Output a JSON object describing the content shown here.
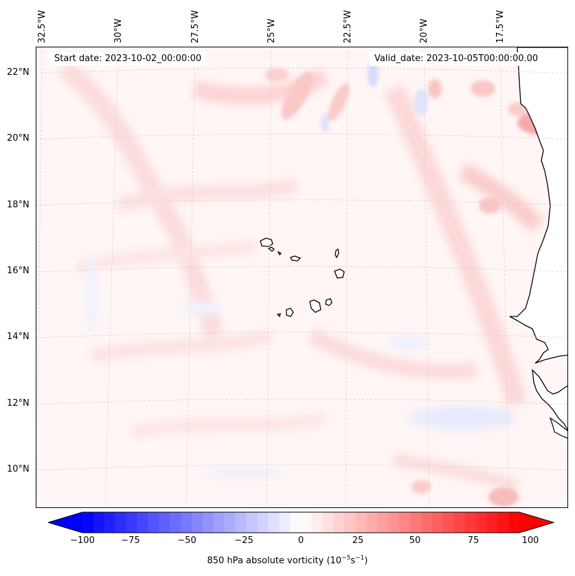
{
  "header": {
    "start_date": "Start date: 2023-10-02_00:00:00",
    "valid_date": "Valid_date: 2023-10-05T00:00:00.00"
  },
  "axes": {
    "longitude_labels": [
      "32.5°W",
      "30°W",
      "27.5°W",
      "25°W",
      "22.5°W",
      "20°W",
      "17.5°W"
    ],
    "latitude_labels": [
      "22°N",
      "20°N",
      "18°N",
      "16°N",
      "14°N",
      "12°N",
      "10°N"
    ]
  },
  "colorbar": {
    "ticks": [
      "−100",
      "−75",
      "−50",
      "−25",
      "0",
      "25",
      "50",
      "75",
      "100"
    ],
    "label_prefix": "850 hPa absolute vorticity (10",
    "label_exp1": "−5",
    "label_mid": "s",
    "label_exp2": "−1",
    "label_suffix": ")",
    "min_color": "#0000ff",
    "mid_color": "#ffffff",
    "max_color": "#ff0000"
  },
  "colors": {
    "land": "#ffffff",
    "coast": "#000000",
    "grid": "#c8c8c8"
  }
}
